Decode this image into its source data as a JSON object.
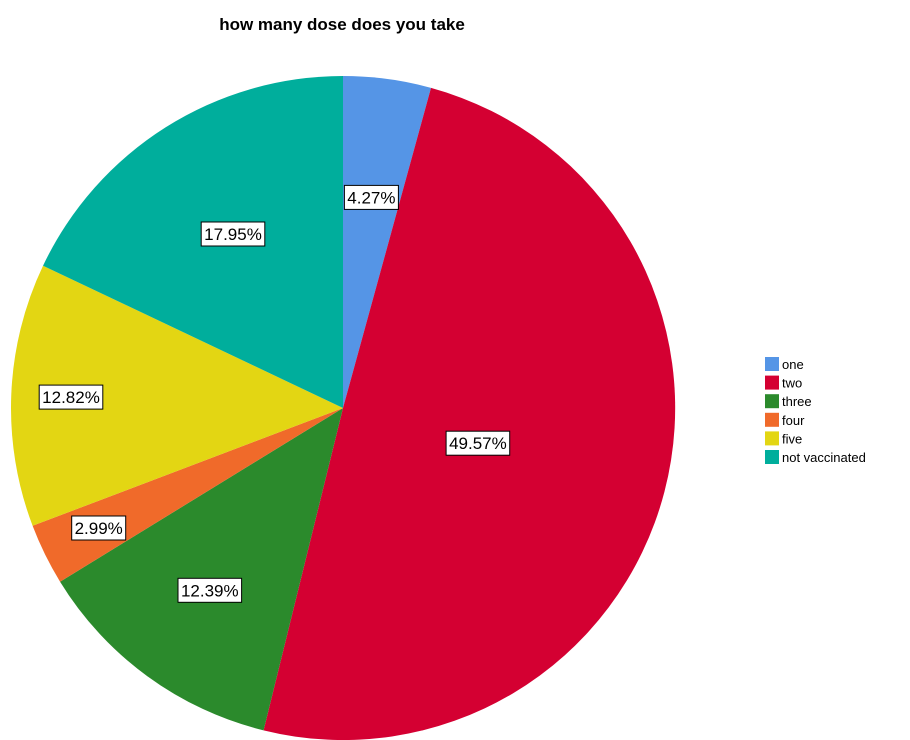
{
  "chart_data": {
    "type": "pie",
    "title": "how many dose does you take",
    "categories": [
      "one",
      "two",
      "three",
      "four",
      "five",
      "not vaccinated"
    ],
    "values": [
      4.27,
      49.57,
      12.39,
      2.99,
      12.82,
      17.95
    ],
    "data_labels": [
      "4.27%",
      "49.57%",
      "12.39%",
      "2.99%",
      "12.82%",
      "17.95%"
    ],
    "colors": [
      "#5595e6",
      "#d40032",
      "#2b8a2c",
      "#f06a2a",
      "#e3d613",
      "#00ae9c"
    ],
    "legend_position": "right",
    "start_angle": "12 o'clock",
    "direction": "clockwise"
  }
}
